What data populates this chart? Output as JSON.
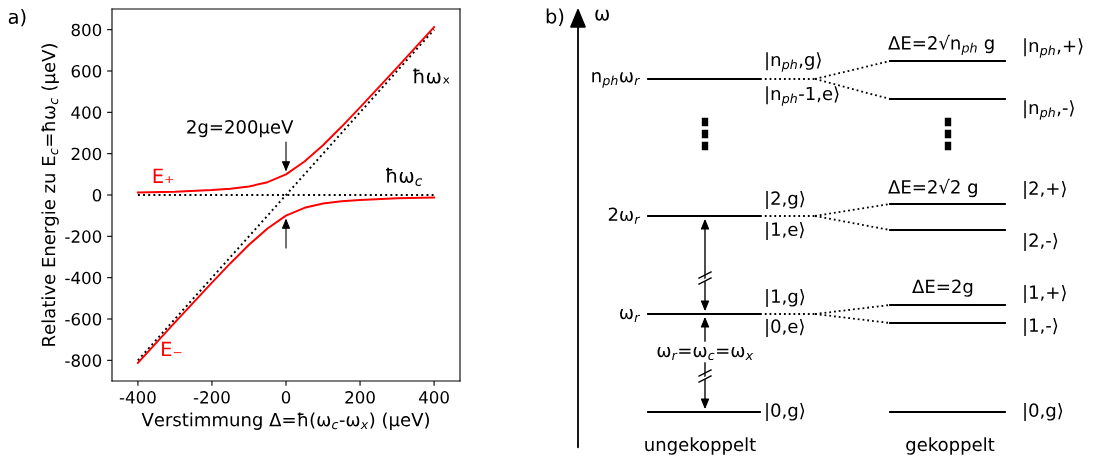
{
  "chart_data": [
    {
      "type": "line",
      "title": "a)",
      "xlabel": "Verstimmung Δ=ħ(ω$_{c}$-ω$_{x}$) (µeV)",
      "ylabel": "Relative Energie zu E$_{c}$=ħω$_{c}$ (µeV)",
      "xlim": [
        -470,
        470
      ],
      "xticks": [
        -400,
        -200,
        0,
        200,
        400
      ],
      "ylim": [
        -900,
        900
      ],
      "yticks": [
        -800,
        -600,
        -400,
        -200,
        0,
        200,
        400,
        600,
        800
      ],
      "grid": false,
      "legend": false,
      "series": [
        {
          "name": "ħωₓ",
          "color": "#000000",
          "line_style": "dotted",
          "x": [
            -400,
            400
          ],
          "values": [
            -800,
            800
          ]
        },
        {
          "name": "ħω$_{c}$",
          "color": "#000000",
          "line_style": "dotted",
          "x": [
            -400,
            400
          ],
          "values": [
            0,
            0
          ]
        },
        {
          "name": "E₊",
          "color": "#ff0000",
          "line_style": "solid",
          "x": [
            -400,
            -300,
            -200,
            -150,
            -100,
            -50,
            0,
            50,
            100,
            150,
            200,
            300,
            400
          ],
          "values": [
            12,
            16,
            24,
            30,
            41,
            62,
            100,
            162,
            241,
            330,
            424,
            616,
            812
          ]
        },
        {
          "name": "E₋",
          "color": "#ff0000",
          "line_style": "solid",
          "x": [
            -400,
            -300,
            -200,
            -150,
            -100,
            -50,
            0,
            50,
            100,
            150,
            200,
            300,
            400
          ],
          "values": [
            -812,
            -616,
            -424,
            -330,
            -241,
            -162,
            -100,
            -62,
            -41,
            -30,
            -24,
            -16,
            -12
          ]
        }
      ],
      "annotations": [
        {
          "text": "2g=200µeV",
          "x": 0,
          "y": 100
        }
      ]
    },
    {
      "type": "other",
      "title": "b)",
      "ylabel": "ω",
      "annotations": [
        "n$_{ph}$ω$_{r}$",
        "2ω$_{r}$",
        "ω$_{r}$",
        "|n$_{ph}$,g⟩",
        "|n$_{ph}$-1,e⟩",
        "|2,g⟩",
        "|1,e⟩",
        "|1,g⟩",
        "|0,e⟩",
        "|0,g⟩",
        "ω$_{r}$=ω$_{c}$=ω$_{x}$",
        "ΔE=2√n$_{ph}$ g",
        "ΔE=2√2 g",
        "ΔE=2g",
        "|n$_{ph}$,+⟩",
        "|n$_{ph}$,-⟩",
        "|2,+⟩",
        "|2,-⟩",
        "|1,+⟩",
        "|1,-⟩",
        "|0,g⟩",
        "ungekoppelt",
        "gekoppelt"
      ]
    }
  ]
}
